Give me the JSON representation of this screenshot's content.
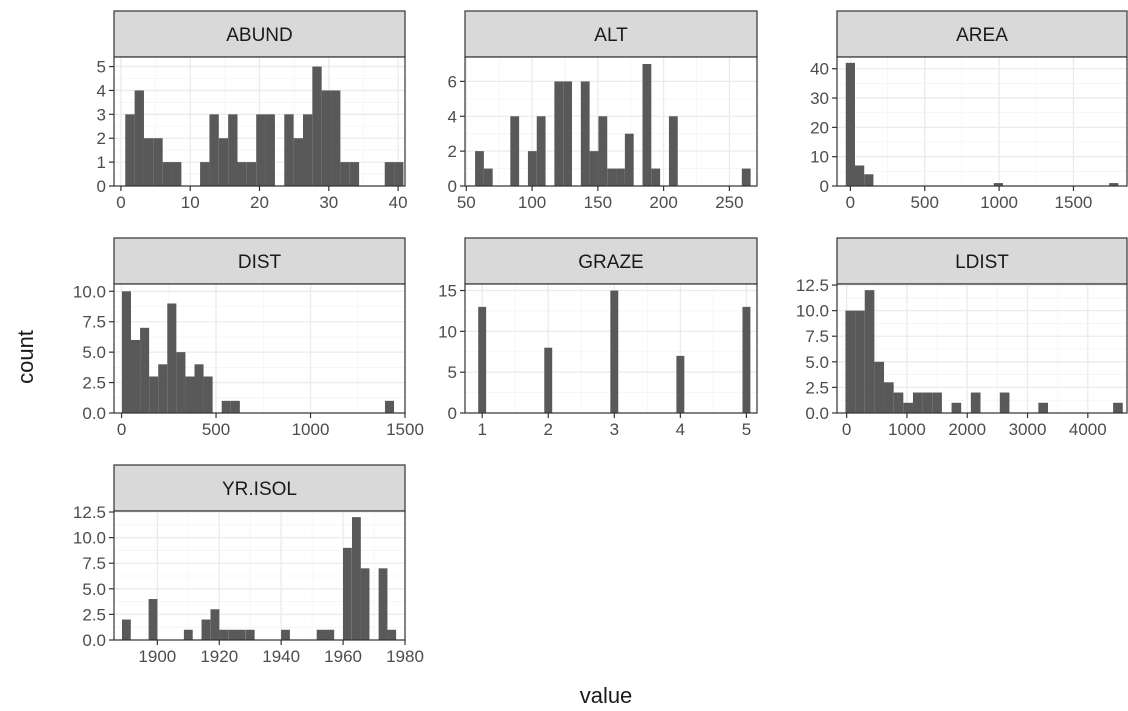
{
  "xlabel": "value",
  "ylabel": "count",
  "colors": {
    "bar": "#595959",
    "strip_bg": "#d9d9d9",
    "panel_border": "#333333",
    "grid": "#ebebeb"
  },
  "chart_data": [
    {
      "type": "bar",
      "title": "ABUND",
      "xlim": [
        -1,
        41
      ],
      "ylim": [
        0,
        5.4
      ],
      "bar_width": 1.35,
      "xticks": [
        0,
        10,
        20,
        30,
        40
      ],
      "yticks": [
        0,
        1,
        2,
        3,
        4,
        5
      ],
      "x": [
        1.3,
        2.65,
        4.0,
        5.35,
        6.7,
        8.05,
        12.1,
        13.45,
        14.8,
        16.15,
        17.5,
        18.85,
        20.2,
        21.55,
        24.25,
        25.6,
        26.95,
        28.3,
        29.65,
        31.0,
        32.35,
        33.7,
        38.75,
        40.1
      ],
      "values": [
        3,
        4,
        2,
        2,
        1,
        1,
        1,
        3,
        2,
        3,
        1,
        1,
        3,
        3,
        3,
        2,
        3,
        5,
        4,
        4,
        1,
        1,
        1,
        1
      ]
    },
    {
      "type": "bar",
      "title": "ALT",
      "xlim": [
        49,
        271
      ],
      "ylim": [
        0,
        7.4
      ],
      "bar_width": 6.7,
      "xticks": [
        50,
        100,
        150,
        200,
        250
      ],
      "yticks": [
        0,
        2,
        4,
        6
      ],
      "x": [
        60,
        66.7,
        86.8,
        100.2,
        106.9,
        120.3,
        127,
        140.4,
        147.1,
        153.8,
        160.5,
        167.2,
        173.9,
        187.3,
        194,
        207.4,
        262.8
      ],
      "values": [
        2,
        1,
        4,
        2,
        4,
        6,
        6,
        6,
        2,
        4,
        1,
        1,
        3,
        7,
        1,
        4,
        1
      ]
    },
    {
      "type": "bar",
      "title": "AREA",
      "xlim": [
        -90,
        1860
      ],
      "ylim": [
        0,
        44
      ],
      "bar_width": 62,
      "xticks": [
        0,
        500,
        1000,
        1500
      ],
      "yticks": [
        0,
        10,
        20,
        30,
        40
      ],
      "x": [
        0,
        62,
        124,
        995,
        1771
      ],
      "values": [
        42,
        7,
        4,
        1,
        1
      ]
    },
    {
      "type": "bar",
      "title": "DIST",
      "xlim": [
        -40,
        1500
      ],
      "ylim": [
        0,
        10.6
      ],
      "bar_width": 48,
      "xticks": [
        0,
        500,
        1000,
        1500
      ],
      "yticks": [
        0,
        2.5,
        5,
        7.5,
        10
      ],
      "yticklabels": [
        "0.0",
        "2.5",
        "5.0",
        "7.5",
        "10.0"
      ],
      "x": [
        26,
        74,
        122,
        170,
        218,
        266,
        314,
        362,
        410,
        458,
        554,
        602,
        1418
      ],
      "values": [
        10,
        6,
        7,
        3,
        4,
        9,
        5,
        3,
        4,
        3,
        1,
        1,
        1
      ]
    },
    {
      "type": "bar",
      "title": "GRAZE",
      "xlim": [
        0.74,
        5.16
      ],
      "ylim": [
        0,
        15.8
      ],
      "bar_width": 0.12,
      "xticks": [
        1,
        2,
        3,
        4,
        5
      ],
      "yticks": [
        0,
        5,
        10,
        15
      ],
      "x": [
        1,
        2,
        3,
        4,
        5
      ],
      "values": [
        13,
        8,
        15,
        7,
        13
      ]
    },
    {
      "type": "bar",
      "title": "LDIST",
      "xlim": [
        -160,
        4650
      ],
      "ylim": [
        0,
        12.6
      ],
      "bar_width": 160,
      "xticks": [
        0,
        1000,
        2000,
        3000,
        4000
      ],
      "xticklabels": [
        "0",
        "1000",
        "2000",
        "3000",
        "4000"
      ],
      "yticks": [
        0,
        2.5,
        5,
        7.5,
        10,
        12.5
      ],
      "yticklabels": [
        "0.0",
        "2.5",
        "5.0",
        "7.5",
        "10.0",
        "12.5"
      ],
      "x": [
        60,
        220,
        380,
        540,
        700,
        860,
        1020,
        1180,
        1340,
        1500,
        1820,
        2140,
        2620,
        3260,
        4500
      ],
      "values": [
        10,
        10,
        12,
        5,
        3,
        2,
        1,
        2,
        2,
        2,
        1,
        2,
        2,
        1,
        1
      ]
    },
    {
      "type": "bar",
      "title": "YR.ISOL",
      "xlim": [
        1886,
        1980
      ],
      "ylim": [
        0,
        12.6
      ],
      "bar_width": 2.85,
      "xticks": [
        1900,
        1920,
        1940,
        1960,
        1980
      ],
      "yticks": [
        0,
        2.5,
        5,
        7.5,
        10,
        12.5
      ],
      "yticklabels": [
        "0.0",
        "2.5",
        "5.0",
        "7.5",
        "10.0",
        "12.5"
      ],
      "x": [
        1890,
        1898.6,
        1910,
        1915.7,
        1918.6,
        1921.4,
        1924.3,
        1927.1,
        1930,
        1941.4,
        1952.9,
        1955.7,
        1961.4,
        1964.3,
        1967.1,
        1972.9,
        1975.7
      ],
      "values": [
        2,
        4,
        1,
        2,
        3,
        1,
        1,
        1,
        1,
        1,
        1,
        1,
        9,
        12,
        7,
        7,
        1
      ]
    }
  ]
}
